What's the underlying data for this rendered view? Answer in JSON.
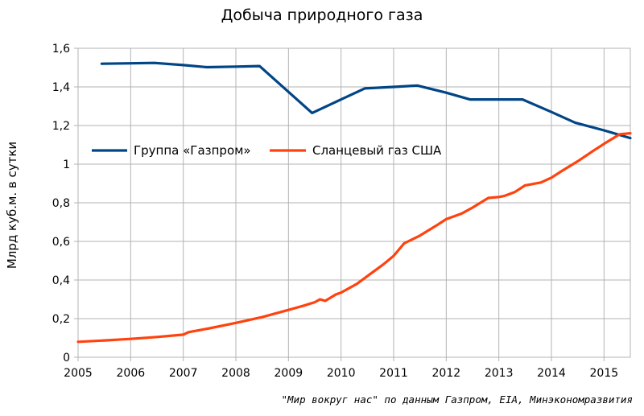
{
  "chart_data": {
    "type": "line",
    "title": "Добыча природного газа",
    "xlabel": "",
    "ylabel": "Млрд куб.м. в сутки",
    "xlim": [
      2005,
      2015.5
    ],
    "ylim": [
      0,
      1.6
    ],
    "x_ticks": [
      "2005",
      "2006",
      "2007",
      "2008",
      "2009",
      "2010",
      "2011",
      "2012",
      "2013",
      "2014",
      "2015"
    ],
    "y_ticks": [
      "0",
      "0,2",
      "0,4",
      "0,6",
      "0,8",
      "1",
      "1,2",
      "1,4",
      "1,6"
    ],
    "grid": true,
    "legend": "middle-left",
    "series": [
      {
        "name": "Группа «Газпром»",
        "color": "#004586",
        "x": [
          2005.45,
          2006,
          2006.45,
          2007,
          2007.45,
          2008,
          2008.45,
          2009.45,
          2010,
          2010.45,
          2011,
          2011.45,
          2012,
          2012.45,
          2013,
          2013.45,
          2014,
          2014.45,
          2015,
          2015.5
        ],
        "y": [
          1.52,
          1.522,
          1.524,
          1.513,
          1.502,
          1.505,
          1.508,
          1.265,
          1.335,
          1.392,
          1.4,
          1.407,
          1.37,
          1.335,
          1.335,
          1.335,
          1.27,
          1.215,
          1.175,
          1.135
        ]
      },
      {
        "name": "Сланцевый газ США",
        "color": "#ff420e",
        "x": [
          2005,
          2005.5,
          2006,
          2006.5,
          2007,
          2007.1,
          2007.5,
          2008,
          2008.5,
          2009,
          2009.3,
          2009.5,
          2009.6,
          2009.7,
          2009.9,
          2010,
          2010.3,
          2010.5,
          2010.8,
          2011,
          2011.2,
          2011.5,
          2011.8,
          2012,
          2012.3,
          2012.5,
          2012.8,
          2013,
          2013.1,
          2013.3,
          2013.5,
          2013.8,
          2014,
          2014.2,
          2014.5,
          2014.8,
          2015,
          2015.3,
          2015.5
        ],
        "y": [
          0.08,
          0.087,
          0.095,
          0.105,
          0.117,
          0.13,
          0.15,
          0.178,
          0.208,
          0.245,
          0.268,
          0.285,
          0.3,
          0.292,
          0.325,
          0.335,
          0.38,
          0.42,
          0.48,
          0.525,
          0.59,
          0.63,
          0.68,
          0.715,
          0.745,
          0.775,
          0.825,
          0.83,
          0.835,
          0.855,
          0.89,
          0.905,
          0.93,
          0.965,
          1.015,
          1.07,
          1.105,
          1.155,
          1.16
        ]
      }
    ]
  },
  "source_note": "\"Мир вокруг нас\" по данным Газпром, EIA, Минэкономразвития"
}
